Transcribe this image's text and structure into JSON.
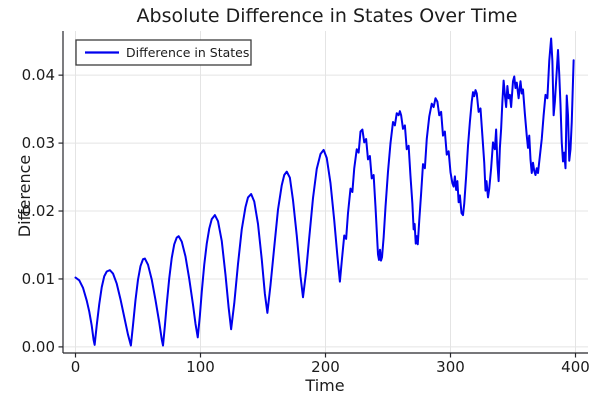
{
  "chart_data": {
    "type": "line",
    "title": "Absolute Difference in States Over Time",
    "xlabel": "Time",
    "ylabel": "Difference",
    "xlim": [
      -10,
      410
    ],
    "ylim": [
      -0.0009,
      0.0465
    ],
    "grid": true,
    "legend_position": "top-left",
    "legend": [
      "Difference in States"
    ],
    "x_ticks": [
      {
        "v": 0,
        "label": "0"
      },
      {
        "v": 100,
        "label": "100"
      },
      {
        "v": 200,
        "label": "200"
      },
      {
        "v": 300,
        "label": "300"
      },
      {
        "v": 400,
        "label": "400"
      }
    ],
    "y_ticks": [
      {
        "v": 0.0,
        "label": "0.00"
      },
      {
        "v": 0.01,
        "label": "0.01"
      },
      {
        "v": 0.02,
        "label": "0.02"
      },
      {
        "v": 0.03,
        "label": "0.03"
      },
      {
        "v": 0.04,
        "label": "0.04"
      }
    ],
    "series": [
      {
        "name": "Difference in States",
        "color": "#0000ee",
        "points": [
          [
            0,
            0.0102
          ],
          [
            3,
            0.0098
          ],
          [
            6,
            0.0087
          ],
          [
            9,
            0.0068
          ],
          [
            11,
            0.0052
          ],
          [
            13,
            0.0031
          ],
          [
            14.5,
            0.001
          ],
          [
            15.3,
            0.0003
          ],
          [
            17,
            0.0032
          ],
          [
            19,
            0.0063
          ],
          [
            21,
            0.0088
          ],
          [
            23,
            0.0104
          ],
          [
            25,
            0.0111
          ],
          [
            27.5,
            0.0113
          ],
          [
            30,
            0.0108
          ],
          [
            33,
            0.0093
          ],
          [
            36,
            0.007
          ],
          [
            39,
            0.0044
          ],
          [
            42,
            0.0018
          ],
          [
            44.3,
            0.0002
          ],
          [
            46,
            0.0032
          ],
          [
            48,
            0.0069
          ],
          [
            50,
            0.0099
          ],
          [
            52,
            0.0119
          ],
          [
            54,
            0.0129
          ],
          [
            55.5,
            0.013
          ],
          [
            58,
            0.0121
          ],
          [
            61,
            0.0099
          ],
          [
            64,
            0.0069
          ],
          [
            67,
            0.0036
          ],
          [
            69,
            0.0011
          ],
          [
            70,
            0.0002
          ],
          [
            71.5,
            0.0031
          ],
          [
            73,
            0.0063
          ],
          [
            75,
            0.0101
          ],
          [
            77,
            0.0131
          ],
          [
            79,
            0.0151
          ],
          [
            81,
            0.0161
          ],
          [
            82.5,
            0.0163
          ],
          [
            85,
            0.0155
          ],
          [
            88,
            0.0133
          ],
          [
            91,
            0.01
          ],
          [
            94,
            0.0062
          ],
          [
            96,
            0.0034
          ],
          [
            97.8,
            0.0014
          ],
          [
            99.5,
            0.0046
          ],
          [
            101,
            0.0081
          ],
          [
            103,
            0.0121
          ],
          [
            105,
            0.0152
          ],
          [
            107,
            0.0174
          ],
          [
            109,
            0.0188
          ],
          [
            111.5,
            0.0194
          ],
          [
            114,
            0.0185
          ],
          [
            117,
            0.0156
          ],
          [
            120,
            0.0106
          ],
          [
            122.5,
            0.0058
          ],
          [
            124.5,
            0.0026
          ],
          [
            127,
            0.0064
          ],
          [
            130,
            0.0122
          ],
          [
            133,
            0.0173
          ],
          [
            136,
            0.0206
          ],
          [
            138,
            0.022
          ],
          [
            140.5,
            0.0225
          ],
          [
            143,
            0.0214
          ],
          [
            146,
            0.0181
          ],
          [
            149,
            0.0129
          ],
          [
            151.5,
            0.0078
          ],
          [
            153.5,
            0.005
          ],
          [
            156,
            0.0091
          ],
          [
            159,
            0.0147
          ],
          [
            162,
            0.0202
          ],
          [
            165,
            0.0238
          ],
          [
            167,
            0.0253
          ],
          [
            169,
            0.0258
          ],
          [
            171.5,
            0.0249
          ],
          [
            174,
            0.0216
          ],
          [
            177,
            0.0164
          ],
          [
            180,
            0.0104
          ],
          [
            182,
            0.0073
          ],
          [
            184.5,
            0.0111
          ],
          [
            187,
            0.0161
          ],
          [
            190,
            0.0219
          ],
          [
            193,
            0.0262
          ],
          [
            196,
            0.0284
          ],
          [
            198.5,
            0.029
          ],
          [
            201,
            0.0278
          ],
          [
            204,
            0.0241
          ],
          [
            207,
            0.0186
          ],
          [
            209.5,
            0.0134
          ],
          [
            211.5,
            0.0096
          ],
          [
            213,
            0.0126
          ],
          [
            215,
            0.0164
          ],
          [
            216.5,
            0.0159
          ],
          [
            218,
            0.0197
          ],
          [
            220,
            0.0233
          ],
          [
            221.5,
            0.0228
          ],
          [
            223,
            0.0263
          ],
          [
            225,
            0.0291
          ],
          [
            226.5,
            0.0286
          ],
          [
            228,
            0.0317
          ],
          [
            229.5,
            0.032
          ],
          [
            231,
            0.0301
          ],
          [
            232.5,
            0.0306
          ],
          [
            234,
            0.0276
          ],
          [
            235.5,
            0.0281
          ],
          [
            237,
            0.0248
          ],
          [
            238.5,
            0.0253
          ],
          [
            240,
            0.0206
          ],
          [
            241,
            0.0171
          ],
          [
            242,
            0.0136
          ],
          [
            242.8,
            0.0128
          ],
          [
            243.6,
            0.0143
          ],
          [
            244.4,
            0.0127
          ],
          [
            245.2,
            0.0132
          ],
          [
            246.5,
            0.0161
          ],
          [
            248,
            0.0206
          ],
          [
            250,
            0.0258
          ],
          [
            252,
            0.03
          ],
          [
            254,
            0.0331
          ],
          [
            255.5,
            0.0326
          ],
          [
            257,
            0.0344
          ],
          [
            258.5,
            0.0341
          ],
          [
            259.5,
            0.0347
          ],
          [
            260.5,
            0.0341
          ],
          [
            262,
            0.0321
          ],
          [
            263.5,
            0.0326
          ],
          [
            265,
            0.0291
          ],
          [
            266.5,
            0.0296
          ],
          [
            268,
            0.0251
          ],
          [
            269.5,
            0.0211
          ],
          [
            270.5,
            0.0173
          ],
          [
            271.3,
            0.0181
          ],
          [
            272.2,
            0.0152
          ],
          [
            273,
            0.0163
          ],
          [
            273.8,
            0.0151
          ],
          [
            275,
            0.0186
          ],
          [
            276.5,
            0.0226
          ],
          [
            278,
            0.0269
          ],
          [
            279.5,
            0.0263
          ],
          [
            281,
            0.0306
          ],
          [
            283,
            0.0339
          ],
          [
            285,
            0.0358
          ],
          [
            286.5,
            0.0353
          ],
          [
            288,
            0.0366
          ],
          [
            289.5,
            0.0361
          ],
          [
            291,
            0.0341
          ],
          [
            292.5,
            0.0346
          ],
          [
            294,
            0.0311
          ],
          [
            295.5,
            0.0317
          ],
          [
            297,
            0.0283
          ],
          [
            298.5,
            0.0288
          ],
          [
            300,
            0.0257
          ],
          [
            301.5,
            0.0241
          ],
          [
            302.5,
            0.0236
          ],
          [
            303.5,
            0.0251
          ],
          [
            304.5,
            0.0231
          ],
          [
            305.5,
            0.0244
          ],
          [
            306.5,
            0.0213
          ],
          [
            307.5,
            0.0223
          ],
          [
            308.8,
            0.0197
          ],
          [
            310,
            0.0194
          ],
          [
            311,
            0.0211
          ],
          [
            312.5,
            0.0251
          ],
          [
            314,
            0.0296
          ],
          [
            315.5,
            0.0331
          ],
          [
            317,
            0.0361
          ],
          [
            318,
            0.0375
          ],
          [
            319,
            0.0369
          ],
          [
            320,
            0.0378
          ],
          [
            321,
            0.0373
          ],
          [
            322.5,
            0.0346
          ],
          [
            324,
            0.0351
          ],
          [
            325.5,
            0.0311
          ],
          [
            327,
            0.0271
          ],
          [
            328,
            0.023
          ],
          [
            328.8,
            0.0244
          ],
          [
            330,
            0.022
          ],
          [
            331,
            0.0233
          ],
          [
            332.5,
            0.0263
          ],
          [
            334,
            0.0301
          ],
          [
            335.5,
            0.0291
          ],
          [
            336.5,
            0.032
          ],
          [
            337.5,
            0.0271
          ],
          [
            338.5,
            0.0244
          ],
          [
            339.5,
            0.0293
          ],
          [
            340.5,
            0.0321
          ],
          [
            341.5,
            0.0361
          ],
          [
            342.5,
            0.0392
          ],
          [
            343.5,
            0.0371
          ],
          [
            344.5,
            0.0353
          ],
          [
            345.5,
            0.0384
          ],
          [
            346.5,
            0.0366
          ],
          [
            347.5,
            0.0371
          ],
          [
            348.5,
            0.0353
          ],
          [
            350,
            0.0391
          ],
          [
            351,
            0.0398
          ],
          [
            352,
            0.0381
          ],
          [
            353,
            0.0389
          ],
          [
            354.5,
            0.0366
          ],
          [
            356,
            0.0391
          ],
          [
            357,
            0.0373
          ],
          [
            358,
            0.0379
          ],
          [
            359.5,
            0.0343
          ],
          [
            361,
            0.0311
          ],
          [
            362,
            0.0293
          ],
          [
            363,
            0.0311
          ],
          [
            364,
            0.0276
          ],
          [
            365,
            0.0256
          ],
          [
            366,
            0.0271
          ],
          [
            367,
            0.0259
          ],
          [
            368,
            0.0253
          ],
          [
            369,
            0.0263
          ],
          [
            370,
            0.0256
          ],
          [
            371.5,
            0.0281
          ],
          [
            373,
            0.0306
          ],
          [
            374.5,
            0.0341
          ],
          [
            376,
            0.0371
          ],
          [
            377.5,
            0.0366
          ],
          [
            379,
            0.0421
          ],
          [
            380.5,
            0.0454
          ],
          [
            381.5,
            0.0421
          ],
          [
            382.5,
            0.0341
          ],
          [
            383.5,
            0.0361
          ],
          [
            385,
            0.0406
          ],
          [
            386,
            0.0437
          ],
          [
            387,
            0.0401
          ],
          [
            388,
            0.0356
          ],
          [
            389,
            0.0301
          ],
          [
            390,
            0.0273
          ],
          [
            391,
            0.0286
          ],
          [
            392,
            0.0263
          ],
          [
            393,
            0.037
          ],
          [
            394,
            0.0341
          ],
          [
            395,
            0.0274
          ],
          [
            396,
            0.0291
          ],
          [
            397,
            0.0331
          ],
          [
            398.5,
            0.0422
          ]
        ]
      }
    ]
  },
  "colors": {
    "background": "#ffffff",
    "grid": "#e4e4e4",
    "axis": "#26262b",
    "text": "#1c1c1c",
    "line": "#0000ee",
    "legend_border": "#3c3c3c"
  }
}
